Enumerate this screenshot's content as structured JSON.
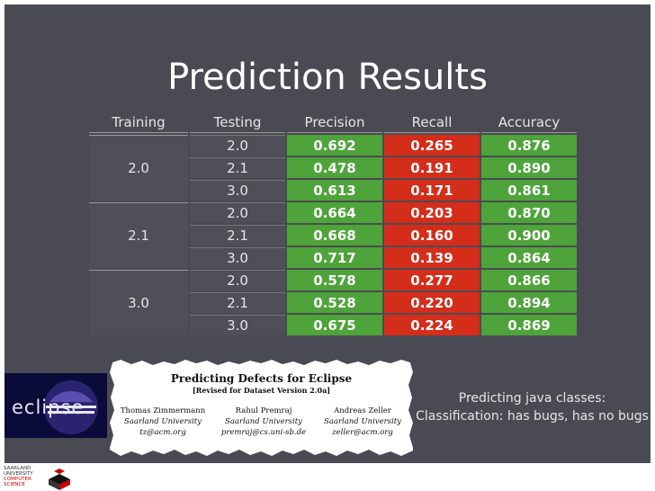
{
  "slide": {
    "title": "Prediction Results",
    "description": "Predicting java classes: Classification: has bugs, has no bugs"
  },
  "table": {
    "headers": [
      "Training",
      "Testing",
      "Precision",
      "Recall",
      "Accuracy"
    ],
    "groups": [
      {
        "training": "2.0",
        "rows": [
          {
            "testing": "2.0",
            "precision": "0.692",
            "recall": "0.265",
            "accuracy": "0.876"
          },
          {
            "testing": "2.1",
            "precision": "0.478",
            "recall": "0.191",
            "accuracy": "0.890"
          },
          {
            "testing": "3.0",
            "precision": "0.613",
            "recall": "0.171",
            "accuracy": "0.861"
          }
        ]
      },
      {
        "training": "2.1",
        "rows": [
          {
            "testing": "2.0",
            "precision": "0.664",
            "recall": "0.203",
            "accuracy": "0.870"
          },
          {
            "testing": "2.1",
            "precision": "0.668",
            "recall": "0.160",
            "accuracy": "0.900"
          },
          {
            "testing": "3.0",
            "precision": "0.717",
            "recall": "0.139",
            "accuracy": "0.864"
          }
        ]
      },
      {
        "training": "3.0",
        "rows": [
          {
            "testing": "2.0",
            "precision": "0.578",
            "recall": "0.277",
            "accuracy": "0.866"
          },
          {
            "testing": "2.1",
            "precision": "0.528",
            "recall": "0.220",
            "accuracy": "0.894"
          },
          {
            "testing": "3.0",
            "precision": "0.675",
            "recall": "0.224",
            "accuracy": "0.869"
          }
        ]
      }
    ]
  },
  "paper": {
    "title": "Predicting Defects for Eclipse",
    "subtitle": "[Revised for Dataset Version 2.0a]",
    "authors": [
      {
        "name": "Thomas Zimmermann",
        "affiliation": "Saarland University",
        "email": "tz@acm.org"
      },
      {
        "name": "Rahul Premraj",
        "affiliation": "Saarland University",
        "email": "premraj@cs.uni-sb.de"
      },
      {
        "name": "Andreas Zeller",
        "affiliation": "Saarland University",
        "email": "zeller@acm.org"
      }
    ]
  },
  "logos": {
    "eclipse": "eclipse",
    "saarland_line1": "SAARLAND",
    "saarland_line2": "UNIVERSITY",
    "saarland_line3": "COMPUTER SCIENCE"
  },
  "colors": {
    "background": "#4a4b52",
    "green": "#4ea43a",
    "red": "#d42e1b"
  }
}
